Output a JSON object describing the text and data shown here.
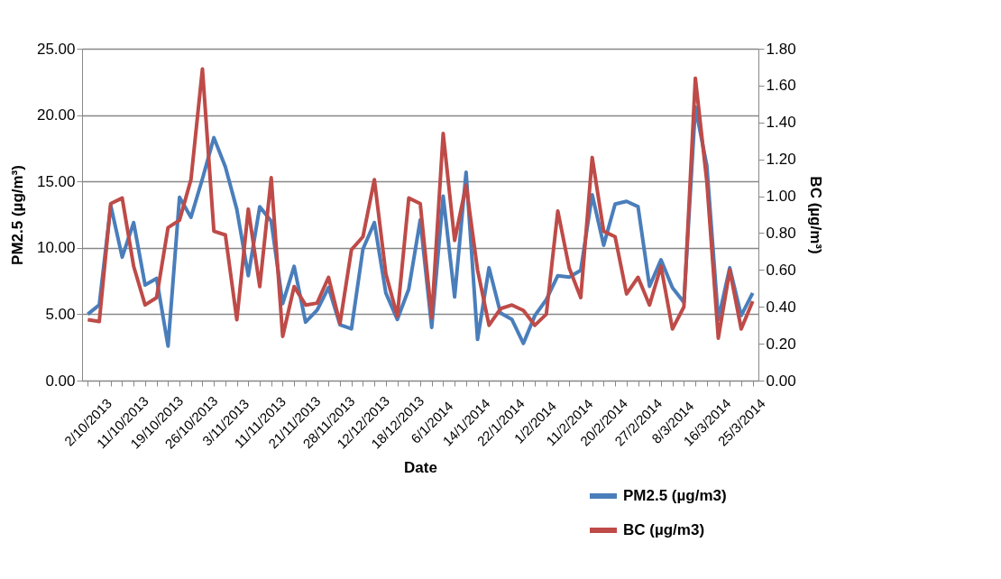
{
  "chart_data": {
    "type": "line",
    "xlabel": "Date",
    "ylabel": "PM2.5 (µg/m³)",
    "y2label": "BC (µg/m³)",
    "categories": [
      "2/10/2013",
      null,
      null,
      "11/10/2013",
      null,
      null,
      "19/10/2013",
      null,
      null,
      "26/10/2013",
      null,
      null,
      "3/11/2013",
      null,
      null,
      "11/11/2013",
      null,
      null,
      "21/11/2013",
      null,
      null,
      "28/11/2013",
      null,
      null,
      "12/12/2013",
      null,
      null,
      "18/12/2013",
      null,
      null,
      "6/1/2014",
      null,
      null,
      "14/1/2014",
      null,
      null,
      "22/1/2014",
      null,
      null,
      "1/2/2014",
      null,
      null,
      "11/2/2014",
      null,
      null,
      "20/2/2014",
      null,
      null,
      "27/2/2014",
      null,
      null,
      "8/3/2014",
      null,
      null,
      "16/3/2014",
      null,
      null,
      "25/3/2014",
      null
    ],
    "series": [
      {
        "name": "PM2.5 (µg/m3)",
        "color": "#4a7ebb",
        "values": [
          5.0,
          5.7,
          13.2,
          9.3,
          11.9,
          7.2,
          7.7,
          2.6,
          13.8,
          12.3,
          15.2,
          18.3,
          16.1,
          12.9,
          7.9,
          13.1,
          12.0,
          5.8,
          8.6,
          4.4,
          5.3,
          7.0,
          4.2,
          3.9,
          9.9,
          11.9,
          6.6,
          4.6,
          6.9,
          12.1,
          4.0,
          13.9,
          6.3,
          15.7,
          3.1,
          8.5,
          5.1,
          4.6,
          2.8,
          4.9,
          6.1,
          7.9,
          7.8,
          8.3,
          14.0,
          10.2,
          13.3,
          13.5,
          13.1,
          7.1,
          9.1,
          7.0,
          5.9,
          20.6,
          16.2,
          4.6,
          8.5,
          4.9,
          6.6
        ]
      },
      {
        "name": "BC (µg/m3)",
        "color": "#be4b48",
        "axis": "y2",
        "values": [
          0.33,
          0.32,
          0.96,
          0.99,
          0.62,
          0.41,
          0.45,
          0.83,
          0.87,
          1.09,
          1.69,
          0.81,
          0.79,
          0.33,
          0.93,
          0.51,
          1.1,
          0.24,
          0.51,
          0.41,
          0.42,
          0.56,
          0.31,
          0.71,
          0.78,
          1.09,
          0.58,
          0.35,
          0.99,
          0.96,
          0.34,
          1.34,
          0.76,
          1.06,
          0.6,
          0.3,
          0.39,
          0.41,
          0.38,
          0.3,
          0.36,
          0.92,
          0.61,
          0.45,
          1.21,
          0.81,
          0.78,
          0.47,
          0.56,
          0.41,
          0.62,
          0.28,
          0.4,
          1.64,
          1.08,
          0.23,
          0.6,
          0.28,
          0.43
        ]
      }
    ],
    "ylim": [
      0,
      25
    ],
    "yticks": [
      {
        "value": 0,
        "label": "0.00"
      },
      {
        "value": 5,
        "label": "5.00"
      },
      {
        "value": 10,
        "label": "10.00"
      },
      {
        "value": 15,
        "label": "15.00"
      },
      {
        "value": 20,
        "label": "20.00"
      },
      {
        "value": 25,
        "label": "25.00"
      }
    ],
    "y2lim": [
      0,
      1.8
    ],
    "y2ticks": [
      {
        "value": 0,
        "label": "0.00"
      },
      {
        "value": 0.2,
        "label": "0.20"
      },
      {
        "value": 0.4,
        "label": "0.40"
      },
      {
        "value": 0.6,
        "label": "0.60"
      },
      {
        "value": 0.8,
        "label": "0.80"
      },
      {
        "value": 1.0,
        "label": "1.00"
      },
      {
        "value": 1.2,
        "label": "1.20"
      },
      {
        "value": 1.4,
        "label": "1.40"
      },
      {
        "value": 1.6,
        "label": "1.60"
      },
      {
        "value": 1.8,
        "label": "1.80"
      }
    ],
    "grid": "y",
    "legend": "bottom right",
    "marker": "none",
    "line_style": "solid"
  }
}
